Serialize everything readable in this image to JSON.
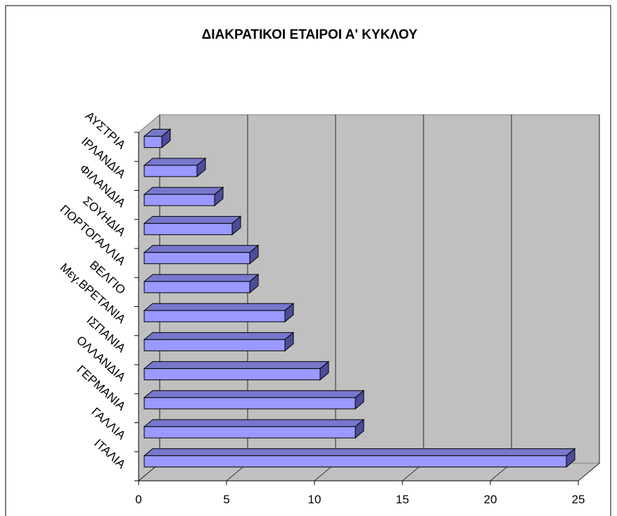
{
  "chart_data": {
    "type": "bar",
    "orientation": "horizontal",
    "title": "ΔΙΑΚΡΑΤΙΚΟΙ ΕΤΑΙΡΟΙ Α' ΚΥΚΛΟΥ",
    "categories": [
      "ΙΤΑΛΙΑ",
      "ΓΑΛΛΙΑ",
      "ΓΕΡΜΑΝΙΑ",
      "ΟΛΛΑΝΔΙΑ",
      "ΙΣΠΑΝΙΑ",
      "Μεγ.ΒΡΕΤΑΝΙΑ",
      "ΒΕΛΓΙΟ",
      "ΠΟΡΤΟΓΑΛΛΙΑ",
      "ΣΟΥΗΔΙΑ",
      "ΦΙΛΑΝΔΙΑ",
      "ΙΡΛΑΝΔΙΑ",
      "ΑΥΣΤΡΙΑ"
    ],
    "values": [
      24,
      12,
      12,
      10,
      8,
      8,
      6,
      6,
      5,
      4,
      3,
      1
    ],
    "color": "#9999ff",
    "xlim": [
      0,
      25
    ],
    "xticks": [
      0,
      5,
      10,
      15,
      20,
      25
    ],
    "grid": true
  }
}
